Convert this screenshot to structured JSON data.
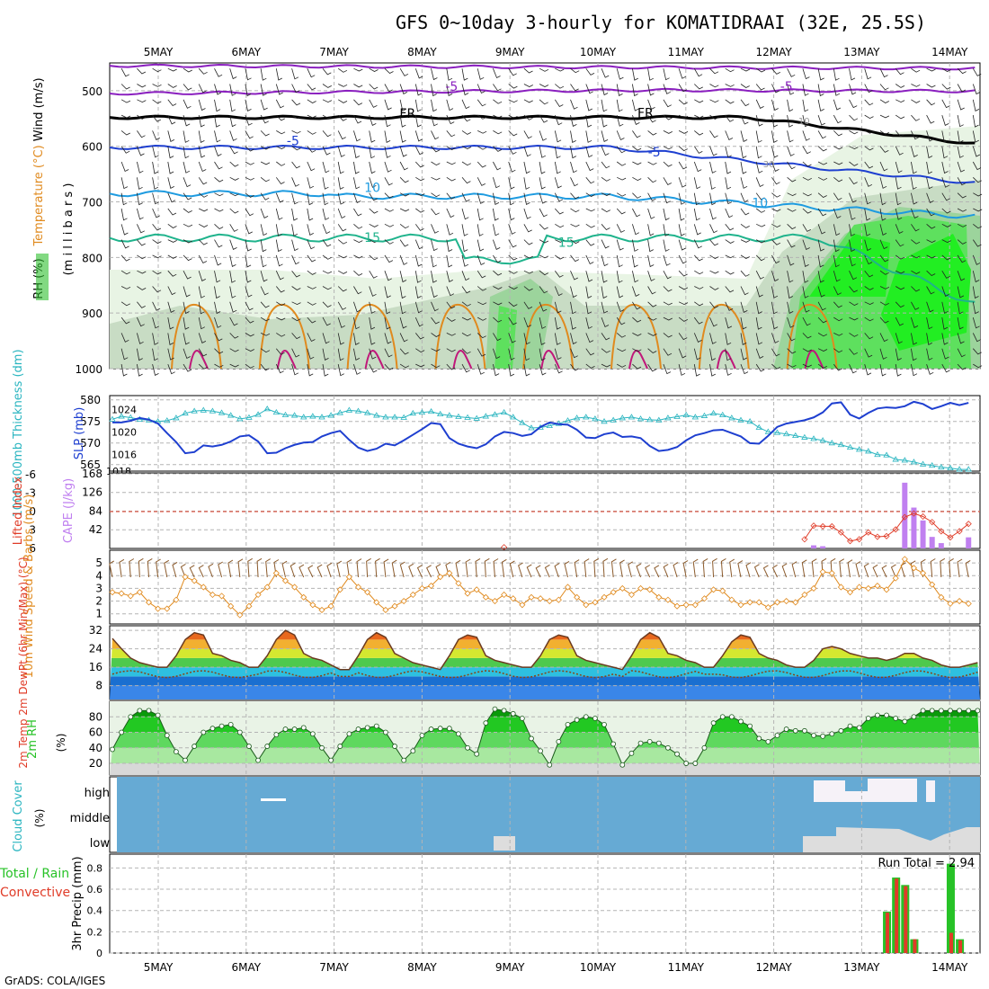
{
  "title": "GFS 0~10day 3-hourly for KOMATIDRAAI (32E, 25.5S)",
  "footer": "GrADS: COLA/IGES",
  "dates": [
    "5MAY",
    "6MAY",
    "7MAY",
    "8MAY",
    "9MAY",
    "10MAY",
    "11MAY",
    "12MAY",
    "13MAY",
    "14MAY"
  ],
  "colors": {
    "grid": "#b4b4b4",
    "purple": "#8a1fbf",
    "blue": "#1e3fd0",
    "lightblue": "#1e9be0",
    "teal": "#1fb38c",
    "orange": "#e08a1e",
    "magenta": "#c0187a",
    "cyan": "#2ab5c0",
    "cloud": "#66aad4",
    "rain_green": "#27c227",
    "conv_red": "#e03c28",
    "cape_purple": "#c080f0"
  },
  "chart_data": [
    {
      "type": "contour",
      "panel": "upper-air",
      "ylabel_parts": [
        "RH (%)",
        "Temperature (°C)",
        "Wind (m/s)"
      ],
      "ylabel2": "millibars",
      "yticks": [
        500,
        600,
        700,
        800,
        900,
        1000
      ],
      "ylim": [
        450,
        1000
      ],
      "contour_labels": [
        {
          "text": "-5",
          "day": 3.6,
          "mb": 500,
          "color": "purple"
        },
        {
          "text": "-5",
          "day": 7.4,
          "mb": 500,
          "color": "purple"
        },
        {
          "text": "FR",
          "day": 3.1,
          "mb": 549,
          "color": "black"
        },
        {
          "text": "FR",
          "day": 5.8,
          "mb": 548,
          "color": "black"
        },
        {
          "text": "-5",
          "day": 1.8,
          "mb": 598,
          "color": "blue"
        },
        {
          "text": "-5",
          "day": 5.9,
          "mb": 618,
          "color": "blue"
        },
        {
          "text": "10",
          "day": 2.7,
          "mb": 682,
          "color": "lightblue"
        },
        {
          "text": "10",
          "day": 7.1,
          "mb": 710,
          "color": "lightblue"
        },
        {
          "text": "15",
          "day": 2.7,
          "mb": 772,
          "color": "teal"
        },
        {
          "text": "15",
          "day": 4.9,
          "mb": 781,
          "color": "teal"
        },
        {
          "text": "30",
          "day": 7.2,
          "mb": 638,
          "color": "gray"
        },
        {
          "text": "10",
          "day": 7.6,
          "mb": 560,
          "color": "gray"
        }
      ]
    },
    {
      "type": "line",
      "panel": "thickness-slp",
      "ylabel_left": "1000-500mb Thickness (dm)",
      "ylabel_right": "SLP (mb)",
      "yticks_left": [
        565,
        570,
        575,
        580
      ],
      "yticks_right": [
        1016,
        1020,
        1024
      ],
      "extra_tick": "1018",
      "series": [
        {
          "name": "Thickness",
          "color": "cyan",
          "marker": "triangle",
          "values": [
            575.5,
            576.2,
            575.9,
            575.5,
            575.3,
            575,
            575.2,
            575.8,
            576.9,
            577.4,
            577.6,
            577.4,
            577,
            576.4,
            575.6,
            575.9,
            576.6,
            577.9,
            577.1,
            576.5,
            576.4,
            576,
            576.2,
            576,
            576.4,
            577,
            577.6,
            577.4,
            577,
            576.4,
            576,
            576,
            575.9,
            576.9,
            577.1,
            577.3,
            576.7,
            576.4,
            576.1,
            575.9,
            575.7,
            576.2,
            576.6,
            577.1,
            576,
            574.7,
            573.5,
            573.6,
            574,
            574.5,
            575.2,
            575.8,
            576,
            575.6,
            575,
            575.3,
            575.8,
            576,
            575.6,
            575.4,
            575.3,
            575.8,
            576.1,
            576.5,
            576,
            576.3,
            576.9,
            576.5,
            575.8,
            575.3,
            575,
            573.6,
            572.6,
            572.4,
            572.1,
            571.7,
            571.3,
            571,
            570.6,
            570,
            569.6,
            569,
            568.5,
            568.1,
            567.3,
            567.2,
            566.2,
            566,
            565.6,
            565.1,
            564.8,
            564.4,
            564.2,
            563.9,
            563.9
          ]
        },
        {
          "name": "SLP",
          "color": "blue",
          "marker": "none",
          "values": [
            1021.7,
            1021.7,
            1022,
            1022.5,
            1022.2,
            1021.5,
            1019.8,
            1018.2,
            1016.2,
            1016.4,
            1017.6,
            1017.4,
            1017.7,
            1018.3,
            1019.2,
            1019.4,
            1018.3,
            1016.2,
            1016.3,
            1017.1,
            1017.7,
            1018.1,
            1018.2,
            1019.2,
            1019.8,
            1020.2,
            1018.6,
            1017.2,
            1016.6,
            1017,
            1017.9,
            1017.6,
            1018.5,
            1019.5,
            1020.5,
            1021.6,
            1021.4,
            1018.9,
            1017.9,
            1017.4,
            1017.1,
            1017.8,
            1019.2,
            1020,
            1019.8,
            1019.3,
            1019.6,
            1020.9,
            1021.7,
            1021.4,
            1021.3,
            1020.4,
            1019,
            1018.9,
            1019.6,
            1019.9,
            1019.1,
            1019.2,
            1018.9,
            1017.5,
            1016.6,
            1016.8,
            1017.3,
            1018.5,
            1019.4,
            1019.8,
            1020.3,
            1020.4,
            1019.8,
            1019.2,
            1018,
            1017.9,
            1019.3,
            1020.9,
            1021.5,
            1021.8,
            1022.1,
            1022.6,
            1023.5,
            1025.1,
            1025.3,
            1023.1,
            1022.4,
            1023.4,
            1024.2,
            1024.4,
            1024.3,
            1024.6,
            1025.4,
            1025,
            1024.1,
            1024.6,
            1025.2,
            1024.8,
            1025.2
          ]
        }
      ]
    },
    {
      "type": "bar+line",
      "panel": "cape-li",
      "ylabel_left": "Lifted Index",
      "ylabel_right": "CAPE (J/kg)",
      "yticks_left": [
        "-6",
        "-3",
        "0",
        "3",
        "6"
      ],
      "yticks_right": [
        "42",
        "84",
        "126",
        "168"
      ],
      "cape_bars": [
        {
          "i": 77,
          "value": 7
        },
        {
          "i": 78,
          "value": 5
        },
        {
          "i": 87,
          "value": 148
        },
        {
          "i": 88,
          "value": 92
        },
        {
          "i": 89,
          "value": 63
        },
        {
          "i": 90,
          "value": 26
        },
        {
          "i": 91,
          "value": 12
        },
        {
          "i": 94,
          "value": 25
        }
      ],
      "li_points": [
        {
          "i": 43,
          "value": 5.8
        },
        {
          "i": 76,
          "value": 4.5
        },
        {
          "i": 77,
          "value": 2.3
        },
        {
          "i": 78,
          "value": 2.4
        },
        {
          "i": 79,
          "value": 2.4
        },
        {
          "i": 80,
          "value": 3.4
        },
        {
          "i": 81,
          "value": 4.8
        },
        {
          "i": 82,
          "value": 4.5
        },
        {
          "i": 83,
          "value": 3.4
        },
        {
          "i": 84,
          "value": 4.1
        },
        {
          "i": 85,
          "value": 4.0
        },
        {
          "i": 86,
          "value": 2.9
        },
        {
          "i": 87,
          "value": 0.9
        },
        {
          "i": 88,
          "value": 0.3
        },
        {
          "i": 89,
          "value": 0.8
        },
        {
          "i": 90,
          "value": 1.7
        },
        {
          "i": 91,
          "value": 3.2
        },
        {
          "i": 92,
          "value": 4.2
        },
        {
          "i": 93,
          "value": 3.2
        },
        {
          "i": 94,
          "value": 2.0
        }
      ]
    },
    {
      "type": "line",
      "panel": "10m-wind",
      "ylabel": "10m Wind Speed & Barbs (m/s)",
      "yticks": [
        1,
        2,
        3,
        4,
        5
      ],
      "ylim": [
        0.2,
        6
      ],
      "values": [
        2.7,
        2.6,
        2.4,
        2.7,
        1.9,
        1.4,
        1.4,
        2.1,
        3.9,
        3.6,
        3.1,
        2.5,
        2.4,
        1.6,
        0.9,
        1.6,
        2.5,
        3.1,
        4.2,
        3.6,
        3.1,
        2.3,
        1.7,
        1.3,
        1.6,
        2.9,
        3.9,
        3.1,
        2.7,
        1.9,
        1.3,
        1.6,
        2.0,
        2.5,
        3.0,
        3.2,
        3.9,
        4.2,
        3.4,
        2.6,
        2.9,
        2.3,
        2.0,
        2.5,
        2.2,
        1.7,
        2.3,
        2.2,
        2.0,
        2.1,
        3.1,
        2.3,
        1.7,
        1.9,
        2.3,
        2.7,
        3.0,
        2.5,
        3.0,
        2.9,
        2.3,
        2.1,
        1.6,
        1.7,
        1.7,
        2.2,
        2.9,
        2.8,
        2.1,
        1.7,
        1.9,
        1.9,
        1.5,
        1.9,
        2.0,
        1.9,
        2.5,
        3.0,
        4.3,
        4.2,
        3.1,
        2.7,
        3.1,
        3.0,
        3.2,
        2.9,
        3.8,
        5.3,
        4.6,
        4.2,
        3.3,
        2.3,
        1.8,
        2.0,
        1.8
      ]
    },
    {
      "type": "area",
      "panel": "2m-temp",
      "ylabel": "2m Temp 2m DewPt (6hr Min/Max) (°C)",
      "yticks": [
        8,
        16,
        24,
        32
      ],
      "ylim": [
        2,
        34
      ],
      "temp": [
        28.5,
        24,
        20,
        18,
        17,
        16,
        16,
        21,
        28,
        31,
        30,
        22,
        21,
        19,
        18,
        16,
        16,
        21,
        28,
        32,
        30,
        22,
        20,
        19,
        17,
        15,
        15,
        21,
        28,
        31,
        29,
        22,
        20,
        18,
        17,
        16,
        15,
        21,
        28,
        30,
        29,
        21,
        19,
        18,
        17,
        16,
        16,
        21,
        28,
        30,
        29,
        21,
        19,
        18,
        17,
        16,
        15,
        21,
        28,
        31,
        29,
        22,
        21,
        19,
        18,
        16,
        16,
        21,
        27,
        30,
        29,
        22,
        20,
        19,
        17,
        16,
        16,
        19,
        24,
        25,
        24,
        22,
        21,
        20,
        20,
        19,
        20,
        22,
        22,
        20,
        19,
        17,
        16,
        16,
        17,
        18
      ]
    },
    {
      "type": "area",
      "panel": "2m-rh",
      "ylabel": "2m RH (%)",
      "yticks": [
        20,
        40,
        60,
        80
      ],
      "ylim": [
        5,
        100
      ],
      "values": [
        38,
        60,
        80,
        88,
        88,
        82,
        56,
        35,
        24,
        42,
        60,
        65,
        68,
        70,
        60,
        42,
        24,
        42,
        57,
        64,
        64,
        66,
        58,
        40,
        24,
        42,
        58,
        64,
        66,
        68,
        60,
        42,
        24,
        36,
        56,
        64,
        65,
        65,
        58,
        40,
        32,
        72,
        90,
        88,
        84,
        78,
        52,
        36,
        18,
        48,
        70,
        76,
        80,
        78,
        70,
        45,
        18,
        33,
        46,
        48,
        46,
        40,
        32,
        20,
        20,
        40,
        72,
        80,
        80,
        74,
        68,
        52,
        48,
        56,
        64,
        62,
        62,
        56,
        55,
        58,
        62,
        68,
        66,
        78,
        82,
        82,
        78,
        74,
        80,
        88,
        88,
        88,
        88,
        88,
        88,
        88
      ]
    },
    {
      "type": "heatmap",
      "panel": "cloud-cover",
      "ylabel": "Cloud Cover (%)",
      "levels": [
        "high",
        "middle",
        "low"
      ]
    },
    {
      "type": "bar",
      "panel": "precip",
      "ylabel": "3hr Precip (mm)",
      "legend_left": [
        "Total / Rain",
        "Convective"
      ],
      "run_total": "Run Total = 2.94",
      "yticks": [
        0,
        0.2,
        0.4,
        0.6,
        0.8
      ],
      "ylim": [
        0,
        0.93
      ],
      "bars": [
        {
          "i": 85,
          "total": 0.39,
          "conv": 0.38
        },
        {
          "i": 86,
          "total": 0.71,
          "conv": 0.7
        },
        {
          "i": 87,
          "total": 0.64,
          "conv": 0.63
        },
        {
          "i": 88,
          "total": 0.13,
          "conv": 0.13
        },
        {
          "i": 92,
          "total": 0.84,
          "conv": 0.19
        },
        {
          "i": 93,
          "total": 0.13,
          "conv": 0.12
        }
      ]
    }
  ]
}
